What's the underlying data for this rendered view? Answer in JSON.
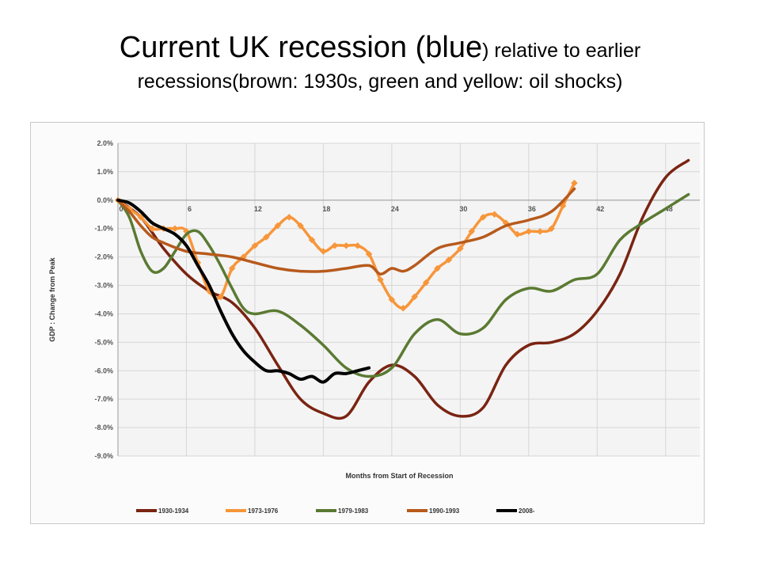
{
  "slide": {
    "title_big_a": "Current UK recession (blue",
    "title_small_a": ")",
    "title_small_b": " relative to earlier",
    "title_line2": "recessions(brown: 1930s, green and yellow: oil shocks)"
  },
  "chart_data": {
    "type": "line",
    "xlabel": "Months from Start of Recession",
    "ylabel": "GDP : Change from Peak",
    "xlim": [
      0,
      51
    ],
    "ylim": [
      -9.0,
      2.0
    ],
    "x_ticks": [
      0,
      6,
      12,
      18,
      24,
      30,
      36,
      42,
      48
    ],
    "y_ticks": [
      2.0,
      1.0,
      0.0,
      -1.0,
      -2.0,
      -3.0,
      -4.0,
      -5.0,
      -6.0,
      -7.0,
      -8.0,
      -9.0
    ],
    "y_tick_labels": [
      "2.0%",
      "1.0%",
      "0.0%",
      "-1.0%",
      "-2.0%",
      "-3.0%",
      "-4.0%",
      "-5.0%",
      "-6.0%",
      "-7.0%",
      "-8.0%",
      "-9.0%"
    ],
    "grid": true,
    "legend_position": "bottom",
    "series": [
      {
        "name": "1930-1934",
        "color": "#7a2412",
        "markers": false,
        "x": [
          0,
          2,
          4,
          6,
          8,
          10,
          12,
          14,
          16,
          18,
          20,
          22,
          24,
          26,
          28,
          30,
          32,
          34,
          36,
          38,
          40,
          42,
          44,
          46,
          48,
          50
        ],
        "y": [
          0.0,
          -0.6,
          -1.7,
          -2.6,
          -3.2,
          -3.6,
          -4.5,
          -5.8,
          -7.0,
          -7.5,
          -7.6,
          -6.4,
          -5.8,
          -6.2,
          -7.2,
          -7.6,
          -7.3,
          -5.8,
          -5.1,
          -5.0,
          -4.7,
          -3.9,
          -2.6,
          -0.6,
          0.8,
          1.4
        ]
      },
      {
        "name": "1973-1976",
        "color": "#f7963a",
        "markers": true,
        "x": [
          0,
          1,
          2,
          3,
          4,
          5,
          6,
          7,
          8,
          9,
          10,
          11,
          12,
          13,
          14,
          15,
          16,
          17,
          18,
          19,
          20,
          21,
          22,
          23,
          24,
          25,
          26,
          27,
          28,
          29,
          30,
          31,
          32,
          33,
          34,
          35,
          36,
          37,
          38,
          39,
          40
        ],
        "y": [
          0.0,
          -0.3,
          -0.6,
          -1.0,
          -1.0,
          -1.0,
          -1.1,
          -2.2,
          -3.2,
          -3.4,
          -2.4,
          -2.0,
          -1.6,
          -1.3,
          -0.9,
          -0.6,
          -0.9,
          -1.4,
          -1.8,
          -1.6,
          -1.6,
          -1.6,
          -1.9,
          -2.8,
          -3.5,
          -3.8,
          -3.4,
          -2.9,
          -2.4,
          -2.1,
          -1.7,
          -1.1,
          -0.6,
          -0.5,
          -0.8,
          -1.2,
          -1.1,
          -1.1,
          -1.0,
          -0.2,
          0.6
        ]
      },
      {
        "name": "1979-1983",
        "color": "#5a7a32",
        "markers": false,
        "x": [
          0,
          1,
          2,
          3,
          4,
          5,
          6,
          7,
          8,
          9,
          10,
          11,
          12,
          14,
          16,
          18,
          20,
          22,
          24,
          26,
          28,
          30,
          32,
          34,
          36,
          38,
          40,
          42,
          44,
          46,
          48,
          50
        ],
        "y": [
          0.0,
          -0.6,
          -1.8,
          -2.5,
          -2.4,
          -1.8,
          -1.2,
          -1.1,
          -1.6,
          -2.3,
          -3.1,
          -3.8,
          -4.0,
          -3.9,
          -4.4,
          -5.1,
          -5.9,
          -6.2,
          -5.9,
          -4.7,
          -4.2,
          -4.7,
          -4.5,
          -3.5,
          -3.1,
          -3.2,
          -2.8,
          -2.6,
          -1.4,
          -0.8,
          -0.3,
          0.2
        ]
      },
      {
        "name": "1990-1993",
        "color": "#b75a1c",
        "markers": false,
        "x": [
          0,
          1,
          2,
          3,
          4,
          6,
          8,
          10,
          12,
          14,
          16,
          18,
          20,
          22,
          23,
          24,
          25,
          26,
          28,
          30,
          32,
          34,
          36,
          38,
          40
        ],
        "y": [
          0.0,
          -0.4,
          -0.9,
          -1.3,
          -1.5,
          -1.8,
          -1.9,
          -2.0,
          -2.2,
          -2.4,
          -2.5,
          -2.5,
          -2.4,
          -2.3,
          -2.6,
          -2.4,
          -2.5,
          -2.3,
          -1.7,
          -1.5,
          -1.3,
          -0.9,
          -0.7,
          -0.4,
          0.4
        ]
      },
      {
        "name": "2008-",
        "color": "#000000",
        "markers": false,
        "x": [
          0,
          1,
          2,
          3,
          4,
          5,
          6,
          7,
          8,
          9,
          10,
          11,
          12,
          13,
          14,
          15,
          16,
          17,
          18,
          19,
          20,
          21,
          22
        ],
        "y": [
          0.0,
          -0.1,
          -0.4,
          -0.8,
          -1.0,
          -1.2,
          -1.6,
          -2.3,
          -3.0,
          -3.9,
          -4.7,
          -5.3,
          -5.7,
          -6.0,
          -6.0,
          -6.1,
          -6.3,
          -6.2,
          -6.4,
          -6.1,
          -6.1,
          -6.0,
          -5.9
        ]
      }
    ]
  }
}
